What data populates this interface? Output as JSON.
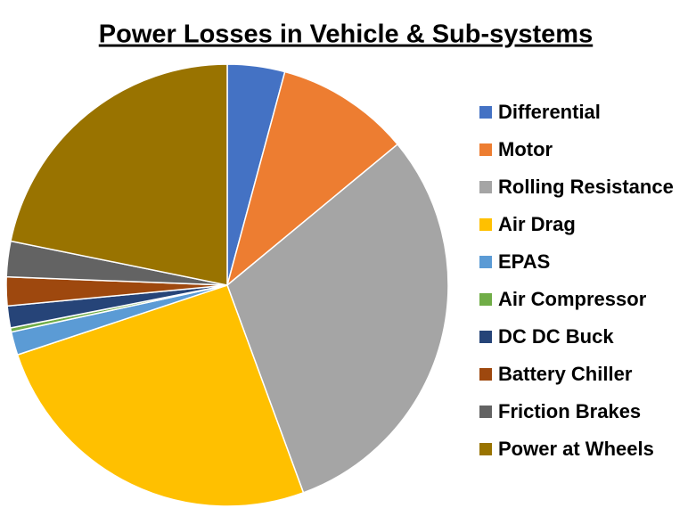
{
  "chart_data": {
    "type": "pie",
    "title": "Power Losses in Vehicle & Sub-systems",
    "categories": [
      "Differential",
      "Motor",
      "Rolling Resistance",
      "Air Drag",
      "EPAS",
      "Air Compressor",
      "DC DC Buck",
      "Battery Chiller",
      "Friction Brakes",
      "Power at Wheels"
    ],
    "values": [
      4.2,
      9.8,
      30.4,
      25.5,
      1.7,
      0.3,
      1.6,
      2.1,
      2.6,
      21.8
    ],
    "colors": [
      "#4472c4",
      "#ed7d31",
      "#a5a5a5",
      "#ffc000",
      "#5b9bd5",
      "#70ad47",
      "#264478",
      "#9e480e",
      "#636363",
      "#997300"
    ],
    "legend": "right"
  }
}
